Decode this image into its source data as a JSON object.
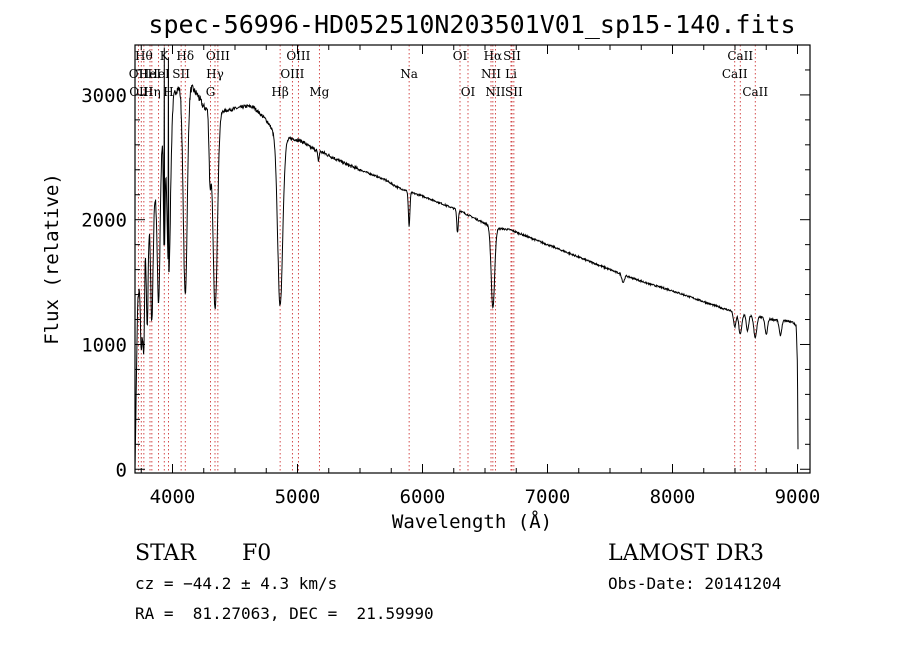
{
  "chart_data": {
    "type": "line",
    "title": "spec-56996-HD052510N203501V01_sp15-140.fits",
    "xlabel": "Wavelength (Å)",
    "ylabel": "Flux (relative)",
    "xlim": [
      3700,
      9100
    ],
    "ylim": [
      -30,
      3400
    ],
    "xticks": [
      4000,
      5000,
      6000,
      7000,
      8000,
      9000
    ],
    "yticks": [
      0,
      1000,
      2000,
      3000
    ],
    "series": [
      {
        "name": "spectrum",
        "continuum": {
          "x": [
            3700,
            3720,
            3740,
            3760,
            3780,
            3800,
            3830,
            3860,
            3890,
            3920,
            3950,
            3980,
            4010,
            4040,
            4070,
            4100,
            4130,
            4160,
            4200,
            4250,
            4300,
            4350,
            4400,
            4450,
            4500,
            4550,
            4600,
            4650,
            4700,
            4750,
            4800,
            4850,
            4900,
            4950,
            5000,
            5050,
            5100,
            5200,
            5300,
            5400,
            5500,
            5600,
            5700,
            5800,
            5900,
            6000,
            6100,
            6200,
            6300,
            6400,
            6500,
            6600,
            6700,
            6800,
            6900,
            7000,
            7200,
            7400,
            7600,
            7800,
            8000,
            8200,
            8400,
            8500,
            8600,
            8700,
            8800,
            8900,
            8960,
            8990,
            9000,
            9005
          ],
          "y": [
            0,
            1300,
            1600,
            1500,
            1800,
            1950,
            2050,
            2200,
            2450,
            2650,
            2800,
            2900,
            3000,
            3050,
            3080,
            3100,
            3100,
            3050,
            3000,
            2900,
            2880,
            2880,
            2870,
            2880,
            2890,
            2900,
            2910,
            2900,
            2850,
            2800,
            2720,
            2660,
            2640,
            2650,
            2640,
            2620,
            2580,
            2540,
            2490,
            2440,
            2400,
            2360,
            2320,
            2260,
            2220,
            2190,
            2150,
            2110,
            2070,
            2020,
            1970,
            1930,
            1920,
            1880,
            1840,
            1800,
            1720,
            1640,
            1560,
            1490,
            1430,
            1360,
            1290,
            1260,
            1240,
            1220,
            1200,
            1190,
            1180,
            1150,
            800,
            0
          ]
        },
        "absorption": [
          {
            "center": 3750,
            "depth": 600,
            "width": 8
          },
          {
            "center": 3770,
            "depth": 700,
            "width": 6
          },
          {
            "center": 3798,
            "depth": 800,
            "width": 7
          },
          {
            "center": 3835,
            "depth": 900,
            "width": 9
          },
          {
            "center": 3889,
            "depth": 1100,
            "width": 11
          },
          {
            "center": 3934,
            "depth": 1000,
            "width": 6
          },
          {
            "center": 3970,
            "depth": 1300,
            "width": 14
          },
          {
            "center": 4102,
            "depth": 1700,
            "width": 16
          },
          {
            "center": 4300,
            "depth": 500,
            "width": 8
          },
          {
            "center": 4341,
            "depth": 1600,
            "width": 18
          },
          {
            "center": 4861,
            "depth": 1350,
            "width": 20
          },
          {
            "center": 5167,
            "depth": 80,
            "width": 6
          },
          {
            "center": 5893,
            "depth": 280,
            "width": 6
          },
          {
            "center": 6280,
            "depth": 180,
            "width": 6
          },
          {
            "center": 6563,
            "depth": 650,
            "width": 14
          },
          {
            "center": 7605,
            "depth": 60,
            "width": 10
          },
          {
            "center": 8498,
            "depth": 120,
            "width": 10
          },
          {
            "center": 8542,
            "depth": 170,
            "width": 12
          },
          {
            "center": 8600,
            "depth": 130,
            "width": 10
          },
          {
            "center": 8662,
            "depth": 170,
            "width": 12
          },
          {
            "center": 8750,
            "depth": 130,
            "width": 10
          },
          {
            "center": 8863,
            "depth": 120,
            "width": 10
          }
        ],
        "spikes": [
          {
            "x": 3934,
            "y": 3380
          },
          {
            "x": 3968,
            "y": 3300
          }
        ]
      }
    ],
    "line_markers": [
      {
        "wavelength": 3727,
        "label": "OII",
        "row": 1
      },
      {
        "wavelength": 3750,
        "label": "OIII",
        "row": 2
      },
      {
        "wavelength": 3771,
        "label": "Hθ",
        "row": 0
      },
      {
        "wavelength": 3820,
        "label": "HeI",
        "row": 1
      },
      {
        "wavelength": 3835,
        "label": "Hη",
        "row": 2
      },
      {
        "wavelength": 3889,
        "label": "HeI",
        "row": 1
      },
      {
        "wavelength": 3934,
        "label": "K",
        "row": 0
      },
      {
        "wavelength": 3968,
        "label": "H",
        "row": 2
      },
      {
        "wavelength": 4069,
        "label": "SII",
        "row": 1
      },
      {
        "wavelength": 4102,
        "label": "Hδ",
        "row": 0
      },
      {
        "wavelength": 4304,
        "label": "G",
        "row": 2
      },
      {
        "wavelength": 4340,
        "label": "Hγ",
        "row": 1
      },
      {
        "wavelength": 4363,
        "label": "OIII",
        "row": 0
      },
      {
        "wavelength": 4861,
        "label": "Hβ",
        "row": 2
      },
      {
        "wavelength": 4959,
        "label": "OIII",
        "row": 1
      },
      {
        "wavelength": 5007,
        "label": "OIII",
        "row": 0
      },
      {
        "wavelength": 5175,
        "label": "Mg",
        "row": 2
      },
      {
        "wavelength": 5893,
        "label": "Na",
        "row": 1
      },
      {
        "wavelength": 6300,
        "label": "OI",
        "row": 0
      },
      {
        "wavelength": 6364,
        "label": "OI",
        "row": 2
      },
      {
        "wavelength": 6548,
        "label": "NII",
        "row": 1
      },
      {
        "wavelength": 6563,
        "label": "Hα",
        "row": 0
      },
      {
        "wavelength": 6583,
        "label": "NII",
        "row": 2
      },
      {
        "wavelength": 6708,
        "label": "Li",
        "row": 1
      },
      {
        "wavelength": 6716,
        "label": "SII",
        "row": 0
      },
      {
        "wavelength": 6731,
        "label": "SII",
        "row": 2
      },
      {
        "wavelength": 8498,
        "label": "CaII",
        "row": 1
      },
      {
        "wavelength": 8542,
        "label": "CaII",
        "row": 0
      },
      {
        "wavelength": 8662,
        "label": "CaII",
        "row": 2
      }
    ]
  },
  "info": {
    "object_class": "STAR",
    "subclass": "F0",
    "survey": "LAMOST DR3",
    "redshift": "cz = −44.2 ± 4.3 km/s",
    "obs_date": "Obs-Date: 20141204",
    "coords": "RA =  81.27063, DEC =  21.59990"
  }
}
